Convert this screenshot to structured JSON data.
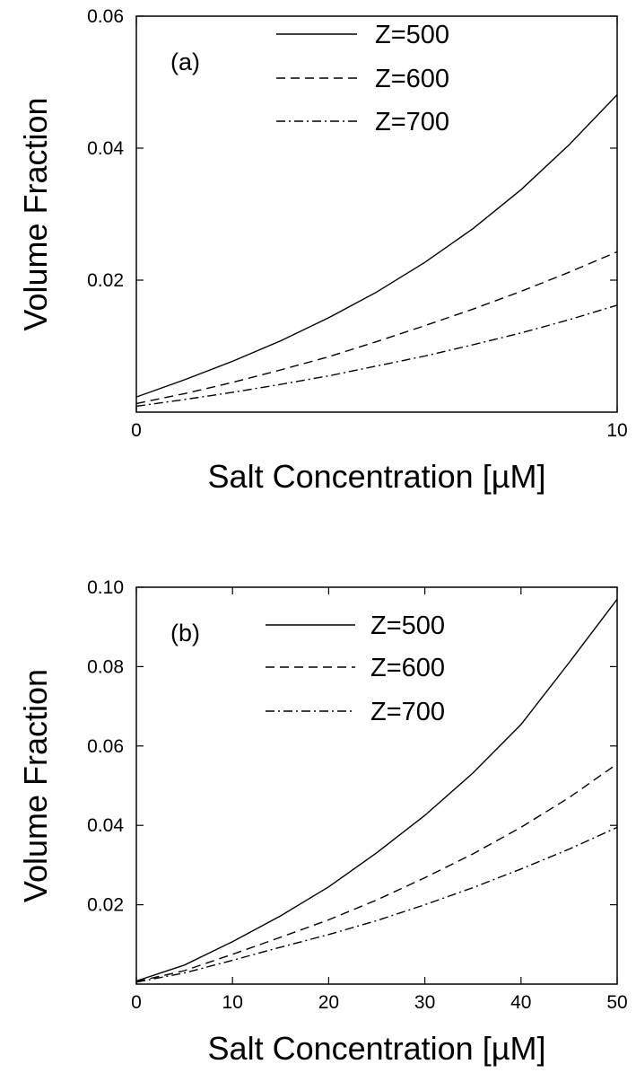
{
  "chart_data": [
    {
      "type": "line",
      "panel_label": "(a)",
      "xlabel": "Salt Concentration [µM]",
      "ylabel": "Volume Fraction",
      "xlim": [
        0,
        10
      ],
      "ylim": [
        0,
        0.06
      ],
      "xticks": [
        0,
        10
      ],
      "xtick_labels": [
        "0",
        "10"
      ],
      "yticks": [
        0.02,
        0.04,
        0.06
      ],
      "ytick_labels": [
        "0.02",
        "0.04",
        "0.06"
      ],
      "grid": false,
      "legend_position": "top-right",
      "x": [
        0,
        1,
        2,
        3,
        4,
        5,
        6,
        7,
        8,
        9,
        10
      ],
      "series": [
        {
          "name": "Z=500",
          "style": "solid",
          "values": [
            0.0023,
            0.0049,
            0.0077,
            0.0108,
            0.0143,
            0.0182,
            0.0227,
            0.0278,
            0.0337,
            0.0405,
            0.0481
          ]
        },
        {
          "name": "Z=600",
          "style": "dashed",
          "values": [
            0.0013,
            0.0028,
            0.0045,
            0.0064,
            0.0084,
            0.0107,
            0.0131,
            0.0156,
            0.0183,
            0.0212,
            0.0243
          ]
        },
        {
          "name": "Z=700",
          "style": "dashdot",
          "values": [
            0.0009,
            0.0019,
            0.003,
            0.0042,
            0.0055,
            0.007,
            0.0085,
            0.0102,
            0.012,
            0.014,
            0.0162
          ]
        }
      ]
    },
    {
      "type": "line",
      "panel_label": "(b)",
      "xlabel": "Salt Concentration [µM]",
      "ylabel": "Volume Fraction",
      "xlim": [
        0,
        50
      ],
      "ylim": [
        0,
        0.1
      ],
      "xticks": [
        0,
        10,
        20,
        30,
        40,
        50
      ],
      "xtick_labels": [
        "0",
        "10",
        "20",
        "30",
        "40",
        "50"
      ],
      "yticks": [
        0.02,
        0.04,
        0.06,
        0.08,
        0.1
      ],
      "ytick_labels": [
        "0.02",
        "0.04",
        "0.06",
        "0.08",
        "0.10"
      ],
      "grid": false,
      "legend_position": "top-right",
      "x": [
        0,
        5,
        10,
        15,
        20,
        25,
        30,
        35,
        40,
        45,
        50
      ],
      "series": [
        {
          "name": "Z=500",
          "style": "solid",
          "values": [
            0.0008,
            0.0048,
            0.0107,
            0.0172,
            0.0245,
            0.0331,
            0.0425,
            0.0532,
            0.0654,
            0.081,
            0.097
          ]
        },
        {
          "name": "Z=600",
          "style": "dashed",
          "values": [
            0.0006,
            0.0034,
            0.0075,
            0.0118,
            0.0162,
            0.0212,
            0.0268,
            0.0328,
            0.0395,
            0.047,
            0.0555
          ]
        },
        {
          "name": "Z=700",
          "style": "dashdot",
          "values": [
            0.0005,
            0.0028,
            0.006,
            0.0093,
            0.0125,
            0.016,
            0.02,
            0.0243,
            0.029,
            0.034,
            0.0395
          ]
        }
      ]
    }
  ]
}
